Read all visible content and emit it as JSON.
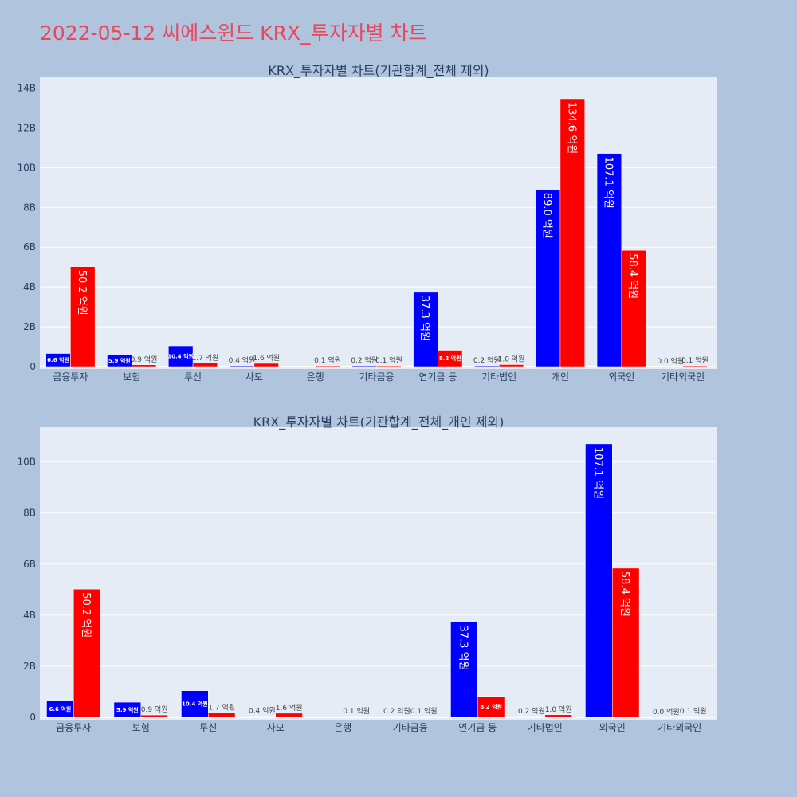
{
  "page": {
    "title": "2022-05-12 씨에스윈드 KRX_투자자별 차트"
  },
  "colors": {
    "paper": "#b0c4de",
    "plot_bg": "#e5ecf6",
    "grid": "#ffffff",
    "title": "#e8485c",
    "series_blue": "#0000ff",
    "series_red": "#ff0000"
  },
  "chart_data": [
    {
      "type": "bar",
      "title": "KRX_투자자별 차트(기관합계_전체 제외)",
      "categories": [
        "금융투자",
        "보험",
        "투신",
        "사모",
        "은행",
        "기타금융",
        "연기금 등",
        "기타법인",
        "개인",
        "외국인",
        "기타외국인"
      ],
      "series": [
        {
          "color": "#0000ff",
          "values": [
            660000000,
            590000000,
            1040000000,
            40000000,
            0,
            20000000,
            3730000000,
            20000000,
            8900000000,
            10710000000,
            0
          ],
          "labels": [
            "6.6 억원",
            "5.9 억원",
            "10.4 억원",
            "0.4 억원",
            "",
            "0.2 억원",
            "37.3 억원",
            "0.2 억원",
            "89.0 억원",
            "107.1 억원",
            "0.0 억원"
          ]
        },
        {
          "color": "#ff0000",
          "values": [
            5020000000,
            90000000,
            170000000,
            160000000,
            10000000,
            10000000,
            820000000,
            100000000,
            13460000000,
            5840000000,
            10000000
          ],
          "labels": [
            "50.2 억원",
            "0.9 억원",
            "1.7 억원",
            "1.6 억원",
            "0.1 억원",
            "0.1 억원",
            "8.2 억원",
            "1.0 억원",
            "134.6 억원",
            "58.4 억원",
            "0.1 억원"
          ]
        }
      ],
      "yticks": [
        0,
        2000000000,
        4000000000,
        6000000000,
        8000000000,
        10000000000,
        12000000000,
        14000000000
      ],
      "ytick_labels": [
        "0",
        "2B",
        "4B",
        "6B",
        "8B",
        "10B",
        "12B",
        "14B"
      ],
      "ylim": [
        0,
        14500000000
      ],
      "grid": true
    },
    {
      "type": "bar",
      "title": "KRX_투자자별 차트(기관합계_전체_개인 제외)",
      "categories": [
        "금융투자",
        "보험",
        "투신",
        "사모",
        "은행",
        "기타금융",
        "연기금 등",
        "기타법인",
        "외국인",
        "기타외국인"
      ],
      "series": [
        {
          "color": "#0000ff",
          "values": [
            660000000,
            590000000,
            1040000000,
            40000000,
            0,
            20000000,
            3730000000,
            20000000,
            10710000000,
            0
          ],
          "labels": [
            "6.6 억원",
            "5.9 억원",
            "10.4 억원",
            "0.4 억원",
            "",
            "0.2 억원",
            "37.3 억원",
            "0.2 억원",
            "107.1 억원",
            "0.0 억원"
          ]
        },
        {
          "color": "#ff0000",
          "values": [
            5020000000,
            90000000,
            170000000,
            160000000,
            10000000,
            10000000,
            820000000,
            100000000,
            5840000000,
            10000000
          ],
          "labels": [
            "50.2 억원",
            "0.9 억원",
            "1.7 억원",
            "1.6 억원",
            "0.1 억원",
            "0.1 억원",
            "8.2 억원",
            "1.0 억원",
            "58.4 억원",
            "0.1 억원"
          ]
        }
      ],
      "yticks": [
        0,
        2000000000,
        4000000000,
        6000000000,
        8000000000,
        10000000000
      ],
      "ytick_labels": [
        "0",
        "2B",
        "4B",
        "6B",
        "8B",
        "10B"
      ],
      "ylim": [
        0,
        11300000000
      ],
      "grid": true
    }
  ]
}
